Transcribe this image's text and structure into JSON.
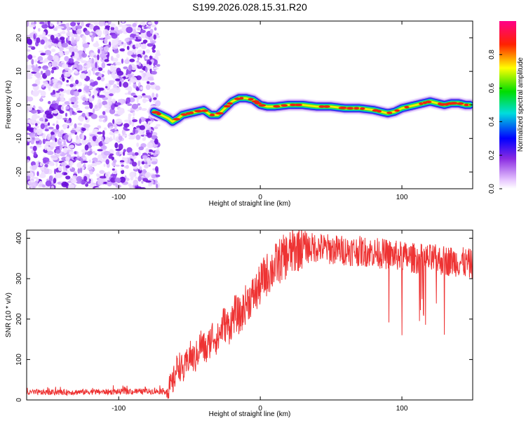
{
  "title": "S199.2026.028.15.31.R20",
  "chart_data": [
    {
      "type": "heatmap",
      "xlabel": "Height of straight line (km)",
      "ylabel": "Frequency (Hz)",
      "xlim": [
        -165,
        150
      ],
      "ylim": [
        -25,
        25
      ],
      "xticks": [
        -100,
        0,
        100
      ],
      "yticks": [
        -20,
        -10,
        0,
        10,
        20
      ],
      "noise_region_x": [
        -165,
        -72
      ],
      "signal_track": {
        "x": [
          -75,
          -70,
          -65,
          -62,
          -58,
          -55,
          -50,
          -45,
          -40,
          -35,
          -30,
          -25,
          -20,
          -15,
          -10,
          -5,
          0,
          5,
          10,
          20,
          30,
          40,
          50,
          60,
          70,
          80,
          85,
          90,
          95,
          100,
          105,
          110,
          115,
          120,
          125,
          130,
          135,
          140,
          145,
          148
        ],
        "y": [
          -2,
          -3,
          -4,
          -5,
          -4,
          -3,
          -2.5,
          -2,
          -1.5,
          -3,
          -3,
          -1,
          1,
          2,
          2,
          1.5,
          0,
          -0.5,
          -0.5,
          0,
          0,
          -0.5,
          -0.5,
          -1,
          -1,
          -1.5,
          -2,
          -2.5,
          -2,
          -1,
          -0.5,
          0,
          0.5,
          1,
          0.5,
          0,
          0.5,
          0.5,
          0,
          0
        ]
      },
      "colorbar": {
        "label": "Normalized spectral amplitude",
        "range": [
          0.0,
          1.0
        ],
        "ticks": [
          "0.0",
          "0.2",
          "0.4",
          "0.6",
          "0.8"
        ]
      }
    },
    {
      "type": "line",
      "xlabel": "Height of straight line (km)",
      "ylabel": "SNR (10 * v/v)",
      "xlim": [
        -165,
        150
      ],
      "ylim": [
        0,
        420
      ],
      "xticks": [
        -100,
        0,
        100
      ],
      "yticks": [
        0,
        100,
        200,
        300,
        400
      ],
      "series": [
        {
          "name": "SNR",
          "color": "#ee3333",
          "x": [
            -165,
            -140,
            -120,
            -100,
            -80,
            -66,
            -62,
            -58,
            -54,
            -50,
            -46,
            -42,
            -38,
            -34,
            -30,
            -26,
            -22,
            -18,
            -14,
            -10,
            -6,
            -2,
            2,
            6,
            10,
            14,
            18,
            22,
            26,
            30,
            34,
            40,
            50,
            60,
            70,
            80,
            90,
            100,
            110,
            120,
            130,
            140,
            150
          ],
          "values": [
            18,
            19,
            20,
            20,
            21,
            22,
            40,
            90,
            70,
            110,
            100,
            140,
            120,
            160,
            150,
            190,
            180,
            215,
            205,
            240,
            255,
            270,
            300,
            315,
            330,
            345,
            355,
            365,
            375,
            385,
            375,
            378,
            372,
            370,
            368,
            365,
            360,
            355,
            350,
            348,
            345,
            342,
            335
          ]
        }
      ]
    }
  ]
}
